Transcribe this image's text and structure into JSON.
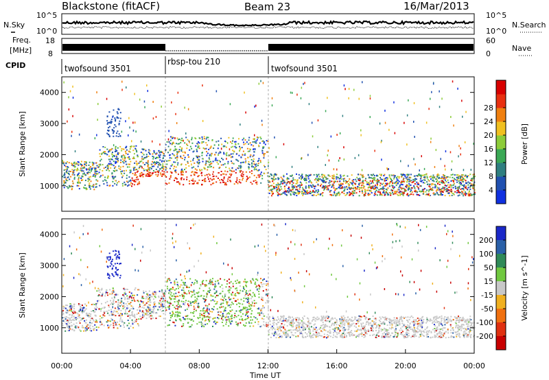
{
  "header": {
    "station": "Blackstone (fitACF)",
    "beam": "Beam 23",
    "date": "16/Mar/2013"
  },
  "left_labels": {
    "nsky": "N.Sky",
    "freq": "Freq.",
    "freq_unit": "[MHz]",
    "cpid": "CPID"
  },
  "right_labels": {
    "nsearch": "N.Search",
    "nave": "Nave"
  },
  "noise_axis": {
    "top": "10^5",
    "bottom": "10^0"
  },
  "freq_axis": {
    "left_ticks": [
      "18",
      "8"
    ],
    "right_ticks": [
      "60",
      "0"
    ]
  },
  "cpid_segments": [
    {
      "label": "twofsound 3501",
      "start_hour": 0,
      "end_hour": 6
    },
    {
      "label": "rbsp-tou 210",
      "start_hour": 6,
      "end_hour": 12
    },
    {
      "label": "twofsound 3501",
      "start_hour": 12,
      "end_hour": 24
    }
  ],
  "time_axis": {
    "label": "Time UT",
    "ticks": [
      "00:00",
      "04:00",
      "08:00",
      "12:00",
      "16:00",
      "20:00",
      "00:00"
    ]
  },
  "range_axis": {
    "label": "Slant Range [km]",
    "ticks": [
      "1000",
      "2000",
      "3000",
      "4000"
    ]
  },
  "chart_data": [
    {
      "type": "heatmap",
      "title": "Power",
      "colorbar_label": "Power [dB]",
      "colorbar_ticks": [
        "4",
        "8",
        "12",
        "16",
        "20",
        "24",
        "28"
      ],
      "colors": [
        "#1030e0",
        "#2050b0",
        "#2f7f80",
        "#3aa855",
        "#8dcc3a",
        "#f0c020",
        "#f08010",
        "#e83010",
        "#d80000"
      ],
      "x_range_hours": [
        0,
        24
      ],
      "y_range_km": [
        180,
        4500
      ],
      "scatter_bands": [
        {
          "x": [
            0,
            4.5
          ],
          "y": [
            1000,
            2000
          ]
        },
        {
          "x": [
            4.5,
            12
          ],
          "y": [
            1000,
            2600
          ]
        },
        {
          "x": [
            12,
            24
          ],
          "y": [
            700,
            1500
          ]
        }
      ]
    },
    {
      "type": "heatmap",
      "title": "Velocity",
      "colorbar_label": "Velocity [m s^-1]",
      "colorbar_ticks": [
        "200",
        "100",
        "50",
        "15",
        "-15",
        "-50",
        "-100",
        "-200"
      ],
      "colors": [
        "#1a28c8",
        "#2a60a8",
        "#2f8a58",
        "#70c840",
        "#c8c8c8",
        "#f0b020",
        "#f07010",
        "#e03010",
        "#c80000"
      ],
      "x_range_hours": [
        0,
        24
      ],
      "y_range_km": [
        180,
        4500
      ],
      "scatter_bands": [
        {
          "x": [
            0,
            4.5
          ],
          "y": [
            1000,
            2000
          ]
        },
        {
          "x": [
            4.5,
            12
          ],
          "y": [
            1000,
            2600
          ]
        },
        {
          "x": [
            12,
            24
          ],
          "y": [
            700,
            1500
          ]
        }
      ]
    }
  ]
}
